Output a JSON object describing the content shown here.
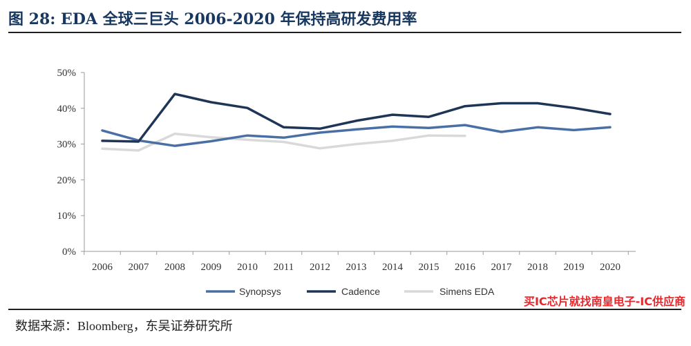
{
  "title": "图 28:  EDA 全球三巨头 2006-2020 年保持高研发费用率",
  "source": "数据来源：Bloomberg，东吴证券研究所",
  "watermark": "买IC芯片就找南皇电子-IC供应商",
  "chart_data": {
    "type": "line",
    "title": "",
    "xlabel": "",
    "ylabel": "",
    "x": [
      "2006",
      "2007",
      "2008",
      "2009",
      "2010",
      "2011",
      "2012",
      "2013",
      "2014",
      "2015",
      "2016",
      "2017",
      "2018",
      "2019",
      "2020"
    ],
    "ylim": [
      0,
      50
    ],
    "yticks": [
      "0%",
      "10%",
      "20%",
      "30%",
      "40%",
      "50%"
    ],
    "grid": false,
    "legend_position": "bottom",
    "series": [
      {
        "name": "Synopsys",
        "color": "#4a6fa5",
        "values": [
          33.8,
          31.0,
          29.5,
          30.8,
          32.4,
          31.8,
          33.2,
          34.1,
          34.9,
          34.5,
          35.3,
          33.4,
          34.7,
          33.9,
          34.7
        ]
      },
      {
        "name": "Cadence",
        "color": "#1f3556",
        "values": [
          30.9,
          30.7,
          44.0,
          41.7,
          40.1,
          34.7,
          34.3,
          36.5,
          38.2,
          37.6,
          40.6,
          41.4,
          41.4,
          40.1,
          38.4
        ]
      },
      {
        "name": "Simens EDA",
        "color": "#d9d9d9",
        "values": [
          28.7,
          28.2,
          32.9,
          31.9,
          31.2,
          30.6,
          28.8,
          30.0,
          30.9,
          32.4,
          32.3,
          null,
          null,
          null,
          null
        ]
      }
    ]
  }
}
